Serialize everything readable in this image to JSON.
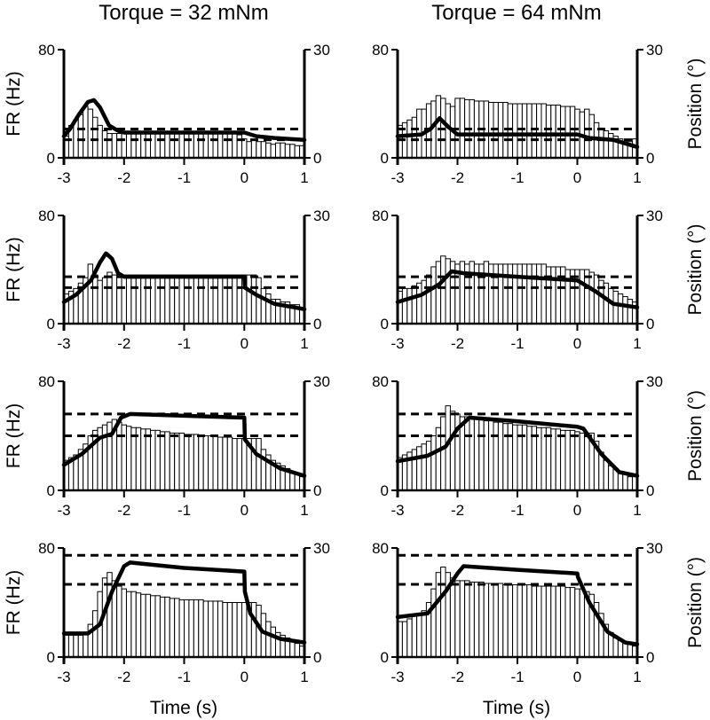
{
  "column_titles": [
    "Torque = 32 mNm",
    "Torque = 64 mNm"
  ],
  "left_axis_label": "FR (Hz)",
  "right_axis_label": "Position (°)",
  "x_axis_label": "Time (s)",
  "chart_data": [
    {
      "type": "bar",
      "column": "Torque = 32 mNm",
      "row": 1,
      "xlim": [
        -3,
        1
      ],
      "ylim_left": [
        0,
        80
      ],
      "ylim_right": [
        0,
        30
      ],
      "xticks": [
        -3,
        -2,
        -1,
        0,
        1
      ],
      "fr_bins_hz": [
        16,
        24,
        28,
        32,
        38,
        36,
        30,
        24,
        20,
        18,
        18,
        18,
        18,
        18,
        18,
        18,
        18,
        18,
        18,
        18,
        18,
        18,
        18,
        18,
        18,
        18,
        18,
        18,
        18,
        18,
        18,
        18,
        18,
        18,
        18,
        18,
        17,
        14,
        12,
        13,
        12,
        12,
        11,
        10,
        11,
        11,
        10,
        10,
        9,
        9
      ],
      "position_deg": [
        [
          -3,
          6
        ],
        [
          -2.9,
          8
        ],
        [
          -2.75,
          12
        ],
        [
          -2.6,
          15.5
        ],
        [
          -2.5,
          16
        ],
        [
          -2.4,
          14
        ],
        [
          -2.25,
          9
        ],
        [
          -2.1,
          7.5
        ],
        [
          -2,
          7
        ],
        [
          0,
          7
        ],
        [
          0.2,
          6
        ],
        [
          0.5,
          5.5
        ],
        [
          1,
          5
        ]
      ],
      "dashed_levels_deg": [
        5,
        8
      ]
    },
    {
      "type": "bar",
      "column": "Torque = 64 mNm",
      "row": 1,
      "xlim": [
        -3,
        1
      ],
      "ylim_left": [
        0,
        80
      ],
      "ylim_right": [
        0,
        30
      ],
      "xticks": [
        -3,
        -2,
        -1,
        0,
        1
      ],
      "fr_bins_hz": [
        24,
        26,
        28,
        30,
        36,
        36,
        40,
        42,
        46,
        44,
        40,
        38,
        44,
        44,
        43,
        43,
        42,
        42,
        42,
        41,
        41,
        41,
        41,
        40,
        40,
        40,
        40,
        40,
        40,
        40,
        40,
        39,
        39,
        39,
        38,
        38,
        38,
        36,
        34,
        36,
        32,
        26,
        22,
        20,
        18,
        16,
        14,
        12,
        12,
        14
      ],
      "position_deg": [
        [
          -3,
          6
        ],
        [
          -2.6,
          6.5
        ],
        [
          -2.45,
          8
        ],
        [
          -2.3,
          11
        ],
        [
          -2.15,
          8.5
        ],
        [
          -2,
          6.5
        ],
        [
          0,
          6.5
        ],
        [
          0.2,
          5.5
        ],
        [
          0.6,
          5
        ],
        [
          1,
          3
        ]
      ],
      "dashed_levels_deg": [
        5,
        8
      ]
    },
    {
      "type": "bar",
      "column": "Torque = 32 mNm",
      "row": 2,
      "xlim": [
        -3,
        1
      ],
      "ylim_left": [
        0,
        80
      ],
      "ylim_right": [
        0,
        30
      ],
      "xticks": [
        -3,
        -2,
        -1,
        0,
        1
      ],
      "fr_bins_hz": [
        22,
        24,
        26,
        30,
        34,
        44,
        36,
        32,
        34,
        38,
        36,
        36,
        36,
        36,
        36,
        36,
        36,
        36,
        36,
        36,
        36,
        36,
        36,
        36,
        36,
        36,
        36,
        36,
        36,
        36,
        36,
        36,
        36,
        36,
        36,
        36,
        36,
        36,
        36,
        36,
        34,
        26,
        22,
        18,
        18,
        16,
        16,
        14,
        14,
        12
      ],
      "position_deg": [
        [
          -3,
          6
        ],
        [
          -2.8,
          8
        ],
        [
          -2.55,
          12
        ],
        [
          -2.4,
          17
        ],
        [
          -2.3,
          19.5
        ],
        [
          -2.2,
          18
        ],
        [
          -2.1,
          14
        ],
        [
          -2,
          13
        ],
        [
          0,
          13
        ],
        [
          0.01,
          10
        ],
        [
          0.2,
          8
        ],
        [
          0.5,
          5.5
        ],
        [
          1,
          4
        ]
      ],
      "dashed_levels_deg": [
        10,
        13
      ]
    },
    {
      "type": "bar",
      "column": "Torque = 64 mNm",
      "row": 2,
      "xlim": [
        -3,
        1
      ],
      "ylim_left": [
        0,
        80
      ],
      "ylim_right": [
        0,
        30
      ],
      "xticks": [
        -3,
        -2,
        -1,
        0,
        1
      ],
      "fr_bins_hz": [
        24,
        26,
        26,
        28,
        30,
        32,
        36,
        42,
        46,
        50,
        48,
        46,
        44,
        46,
        44,
        46,
        44,
        44,
        46,
        44,
        44,
        44,
        44,
        44,
        44,
        44,
        44,
        44,
        44,
        44,
        44,
        42,
        42,
        42,
        42,
        40,
        40,
        40,
        40,
        40,
        38,
        36,
        32,
        30,
        26,
        24,
        22,
        20,
        18,
        16
      ],
      "position_deg": [
        [
          -3,
          6
        ],
        [
          -2.6,
          8
        ],
        [
          -2.3,
          11
        ],
        [
          -2.1,
          14.5
        ],
        [
          -1.9,
          14
        ],
        [
          -1,
          13
        ],
        [
          0,
          12
        ],
        [
          0.3,
          9
        ],
        [
          0.6,
          5.5
        ],
        [
          1,
          4.5
        ]
      ],
      "dashed_levels_deg": [
        10,
        13
      ]
    },
    {
      "type": "bar",
      "column": "Torque = 32 mNm",
      "row": 3,
      "xlim": [
        -3,
        1
      ],
      "ylim_left": [
        0,
        80
      ],
      "ylim_right": [
        0,
        30
      ],
      "xticks": [
        -3,
        -2,
        -1,
        0,
        1
      ],
      "fr_bins_hz": [
        22,
        24,
        26,
        30,
        34,
        40,
        44,
        46,
        48,
        50,
        52,
        50,
        48,
        47,
        46,
        46,
        45,
        45,
        44,
        44,
        43,
        43,
        42,
        42,
        42,
        41,
        41,
        41,
        40,
        40,
        40,
        40,
        39,
        39,
        39,
        38,
        38,
        38,
        38,
        38,
        38,
        30,
        26,
        22,
        20,
        18,
        16,
        14,
        12,
        10
      ],
      "position_deg": [
        [
          -3,
          7
        ],
        [
          -2.7,
          10
        ],
        [
          -2.4,
          14.5
        ],
        [
          -2.2,
          15.5
        ],
        [
          -2.05,
          20
        ],
        [
          -1.9,
          21
        ],
        [
          -1,
          20.5
        ],
        [
          0,
          20
        ],
        [
          0.01,
          14
        ],
        [
          0.2,
          10
        ],
        [
          0.6,
          6
        ],
        [
          1,
          4
        ]
      ],
      "dashed_levels_deg": [
        15,
        21
      ]
    },
    {
      "type": "bar",
      "column": "Torque = 64 mNm",
      "row": 3,
      "xlim": [
        -3,
        1
      ],
      "ylim_left": [
        0,
        80
      ],
      "ylim_right": [
        0,
        30
      ],
      "xticks": [
        -3,
        -2,
        -1,
        0,
        1
      ],
      "fr_bins_hz": [
        24,
        26,
        28,
        30,
        32,
        34,
        36,
        40,
        46,
        54,
        62,
        58,
        56,
        54,
        54,
        53,
        52,
        52,
        51,
        51,
        50,
        50,
        49,
        49,
        48,
        48,
        48,
        47,
        47,
        46,
        46,
        46,
        45,
        45,
        44,
        44,
        44,
        43,
        42,
        42,
        42,
        36,
        28,
        22,
        18,
        16,
        14,
        12,
        10,
        10
      ],
      "position_deg": [
        [
          -3,
          8
        ],
        [
          -2.5,
          9.5
        ],
        [
          -2.2,
          12
        ],
        [
          -2,
          17
        ],
        [
          -1.8,
          20
        ],
        [
          -1,
          19
        ],
        [
          0,
          17.5
        ],
        [
          0.1,
          17
        ],
        [
          0.4,
          10
        ],
        [
          0.7,
          5
        ],
        [
          1,
          4
        ]
      ],
      "dashed_levels_deg": [
        15,
        21
      ]
    },
    {
      "type": "bar",
      "column": "Torque = 32 mNm",
      "row": 4,
      "xlim": [
        -3,
        1
      ],
      "ylim_left": [
        0,
        80
      ],
      "ylim_right": [
        0,
        30
      ],
      "xticks": [
        -3,
        -2,
        -1,
        0,
        1
      ],
      "fr_bins_hz": [
        16,
        16,
        16,
        16,
        18,
        24,
        34,
        48,
        58,
        62,
        56,
        52,
        50,
        48,
        48,
        47,
        46,
        46,
        45,
        45,
        44,
        44,
        43,
        43,
        42,
        42,
        42,
        42,
        42,
        41,
        41,
        41,
        41,
        40,
        40,
        40,
        40,
        40,
        40,
        40,
        38,
        32,
        26,
        22,
        18,
        16,
        14,
        12,
        10,
        8
      ],
      "position_deg": [
        [
          -3,
          6.5
        ],
        [
          -2.6,
          6.5
        ],
        [
          -2.4,
          9
        ],
        [
          -2.2,
          18
        ],
        [
          -2,
          25
        ],
        [
          -1.9,
          26
        ],
        [
          -1,
          24.5
        ],
        [
          0,
          23.5
        ],
        [
          0.01,
          18
        ],
        [
          0.1,
          12
        ],
        [
          0.3,
          7
        ],
        [
          0.6,
          5
        ],
        [
          1,
          4
        ]
      ],
      "dashed_levels_deg": [
        20,
        28
      ]
    },
    {
      "type": "bar",
      "column": "Torque = 64 mNm",
      "row": 4,
      "xlim": [
        -3,
        1
      ],
      "ylim_left": [
        0,
        80
      ],
      "ylim_right": [
        0,
        30
      ],
      "xticks": [
        -3,
        -2,
        -1,
        0,
        1
      ],
      "fr_bins_hz": [
        26,
        26,
        28,
        30,
        32,
        34,
        40,
        50,
        62,
        66,
        62,
        58,
        56,
        56,
        56,
        55,
        55,
        55,
        54,
        54,
        54,
        54,
        53,
        53,
        53,
        53,
        53,
        53,
        52,
        52,
        52,
        52,
        52,
        52,
        52,
        51,
        51,
        50,
        50,
        48,
        46,
        40,
        32,
        24,
        18,
        14,
        12,
        10,
        10,
        8
      ],
      "position_deg": [
        [
          -3,
          11
        ],
        [
          -2.5,
          12
        ],
        [
          -2.2,
          18
        ],
        [
          -2,
          23
        ],
        [
          -1.9,
          25
        ],
        [
          -1,
          24
        ],
        [
          0,
          23
        ],
        [
          0.01,
          22
        ],
        [
          0.2,
          15
        ],
        [
          0.5,
          7
        ],
        [
          0.8,
          4
        ],
        [
          1,
          3.5
        ]
      ],
      "dashed_levels_deg": [
        20,
        28
      ]
    }
  ]
}
